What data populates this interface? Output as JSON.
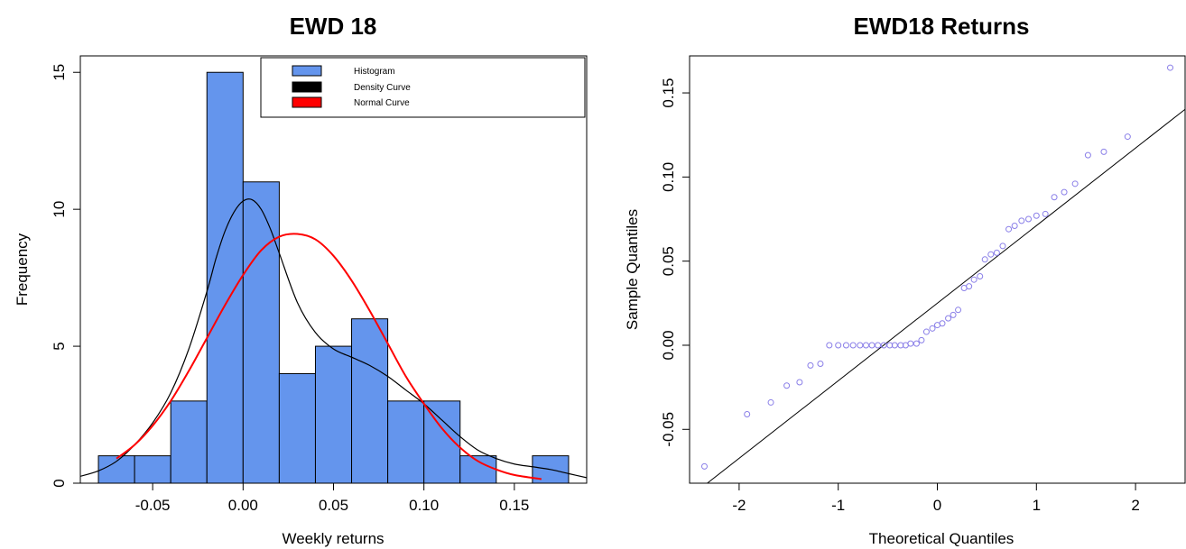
{
  "colors": {
    "histogram_fill": "#6495ED",
    "density_line": "#000000",
    "normal_line": "#FF0000",
    "qq_points": "#8A7FE8",
    "qq_line": "#000000"
  },
  "chart_data": [
    {
      "type": "bar",
      "subtype": "histogram",
      "title": "EWD 18",
      "xlabel": "Weekly returns",
      "ylabel": "Frequency",
      "xlim": [
        -0.09,
        0.19
      ],
      "ylim": [
        0,
        15.6
      ],
      "x_ticks": [
        -0.05,
        0.0,
        0.05,
        0.1,
        0.15
      ],
      "x_tick_labels": [
        "-0.05",
        "0.00",
        "0.05",
        "0.10",
        "0.15"
      ],
      "y_ticks": [
        0,
        5,
        10,
        15
      ],
      "y_tick_labels": [
        "0",
        "5",
        "10",
        "15"
      ],
      "bins": [
        {
          "from": -0.08,
          "to": -0.06,
          "count": 1
        },
        {
          "from": -0.06,
          "to": -0.04,
          "count": 1
        },
        {
          "from": -0.04,
          "to": -0.02,
          "count": 3
        },
        {
          "from": -0.02,
          "to": 0.0,
          "count": 15
        },
        {
          "from": 0.0,
          "to": 0.02,
          "count": 11
        },
        {
          "from": 0.02,
          "to": 0.04,
          "count": 4
        },
        {
          "from": 0.04,
          "to": 0.06,
          "count": 5
        },
        {
          "from": 0.06,
          "to": 0.08,
          "count": 6
        },
        {
          "from": 0.08,
          "to": 0.1,
          "count": 3
        },
        {
          "from": 0.1,
          "to": 0.12,
          "count": 3
        },
        {
          "from": 0.12,
          "to": 0.14,
          "count": 1
        },
        {
          "from": 0.14,
          "to": 0.16,
          "count": 0
        },
        {
          "from": 0.16,
          "to": 0.18,
          "count": 1
        }
      ],
      "legend": {
        "position": "top-right",
        "entries": [
          "Histogram",
          "Density Curve",
          "Normal Curve"
        ]
      },
      "series": [
        {
          "name": "Density Curve",
          "x": [
            -0.09,
            -0.08,
            -0.07,
            -0.06,
            -0.05,
            -0.04,
            -0.03,
            -0.02,
            -0.015,
            -0.01,
            -0.005,
            0.0,
            0.005,
            0.01,
            0.015,
            0.02,
            0.03,
            0.04,
            0.05,
            0.06,
            0.07,
            0.08,
            0.09,
            0.1,
            0.11,
            0.12,
            0.13,
            0.14,
            0.15,
            0.16,
            0.17,
            0.18,
            0.19
          ],
          "values": [
            0.25,
            0.45,
            0.8,
            1.4,
            2.2,
            3.3,
            4.9,
            7.0,
            8.2,
            9.2,
            9.9,
            10.3,
            10.35,
            10.0,
            9.3,
            8.4,
            6.6,
            5.5,
            4.9,
            4.6,
            4.3,
            3.9,
            3.4,
            2.9,
            2.3,
            1.7,
            1.2,
            0.9,
            0.7,
            0.6,
            0.5,
            0.35,
            0.2
          ]
        },
        {
          "name": "Normal Curve",
          "x": [
            -0.07,
            -0.06,
            -0.05,
            -0.04,
            -0.03,
            -0.02,
            -0.01,
            0.0,
            0.01,
            0.02,
            0.03,
            0.04,
            0.05,
            0.06,
            0.07,
            0.08,
            0.09,
            0.1,
            0.11,
            0.12,
            0.13,
            0.14,
            0.15,
            0.165
          ],
          "values": [
            0.9,
            1.4,
            2.1,
            3.0,
            4.1,
            5.3,
            6.5,
            7.6,
            8.5,
            9.0,
            9.1,
            8.9,
            8.3,
            7.4,
            6.3,
            5.1,
            3.9,
            2.9,
            2.0,
            1.3,
            0.8,
            0.5,
            0.3,
            0.15
          ]
        }
      ]
    },
    {
      "type": "scatter",
      "subtype": "qq-plot",
      "title": "EWD18 Returns",
      "xlabel": "Theoretical Quantiles",
      "ylabel": "Sample Quantiles",
      "xlim": [
        -2.5,
        2.5
      ],
      "ylim": [
        -0.082,
        0.172
      ],
      "x_ticks": [
        -2,
        -1,
        0,
        1,
        2
      ],
      "x_tick_labels": [
        "-2",
        "-1",
        "0",
        "1",
        "2"
      ],
      "y_ticks": [
        -0.05,
        0.0,
        0.05,
        0.1,
        0.15
      ],
      "y_tick_labels": [
        "-0.05",
        "0.00",
        "0.05",
        "0.10",
        "0.15"
      ],
      "reference_line": {
        "intercept": 0.025,
        "slope": 0.0461
      },
      "points": [
        [
          -2.35,
          -0.072
        ],
        [
          -1.92,
          -0.041
        ],
        [
          -1.68,
          -0.034
        ],
        [
          -1.52,
          -0.024
        ],
        [
          -1.39,
          -0.022
        ],
        [
          -1.28,
          -0.012
        ],
        [
          -1.18,
          -0.011
        ],
        [
          -1.09,
          0.0
        ],
        [
          -1.0,
          0.0
        ],
        [
          -0.92,
          0.0
        ],
        [
          -0.85,
          0.0
        ],
        [
          -0.78,
          0.0
        ],
        [
          -0.72,
          0.0
        ],
        [
          -0.66,
          0.0
        ],
        [
          -0.6,
          0.0
        ],
        [
          -0.54,
          0.0
        ],
        [
          -0.48,
          0.0
        ],
        [
          -0.43,
          0.0
        ],
        [
          -0.37,
          0.0
        ],
        [
          -0.32,
          0.0
        ],
        [
          -0.27,
          0.001
        ],
        [
          -0.21,
          0.001
        ],
        [
          -0.16,
          0.003
        ],
        [
          -0.11,
          0.008
        ],
        [
          -0.05,
          0.01
        ],
        [
          0.0,
          0.012
        ],
        [
          0.05,
          0.013
        ],
        [
          0.11,
          0.016
        ],
        [
          0.16,
          0.018
        ],
        [
          0.21,
          0.021
        ],
        [
          0.27,
          0.034
        ],
        [
          0.32,
          0.035
        ],
        [
          0.37,
          0.039
        ],
        [
          0.43,
          0.041
        ],
        [
          0.48,
          0.051
        ],
        [
          0.54,
          0.054
        ],
        [
          0.6,
          0.055
        ],
        [
          0.66,
          0.059
        ],
        [
          0.72,
          0.069
        ],
        [
          0.78,
          0.071
        ],
        [
          0.85,
          0.074
        ],
        [
          0.92,
          0.075
        ],
        [
          1.0,
          0.077
        ],
        [
          1.09,
          0.078
        ],
        [
          1.18,
          0.088
        ],
        [
          1.28,
          0.091
        ],
        [
          1.39,
          0.096
        ],
        [
          1.52,
          0.113
        ],
        [
          1.68,
          0.115
        ],
        [
          1.92,
          0.124
        ],
        [
          2.35,
          0.165
        ]
      ]
    }
  ]
}
